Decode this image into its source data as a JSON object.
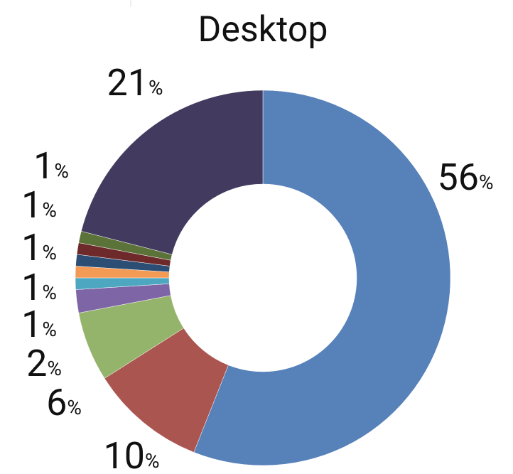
{
  "chart_data": {
    "type": "donut",
    "title": "Desktop",
    "values": [
      56,
      10,
      6,
      2,
      1,
      1,
      1,
      1,
      1,
      21
    ],
    "value_labels": [
      "56%",
      "10%",
      "6%",
      "2%",
      "1%",
      "1%",
      "1%",
      "1%",
      "1%",
      "21%"
    ],
    "colors": [
      "#5681b9",
      "#ab5551",
      "#95b46b",
      "#7e66a6",
      "#4da7c1",
      "#f39a55",
      "#2c4e74",
      "#6e2a2a",
      "#5b7239",
      "#433b5f"
    ]
  }
}
